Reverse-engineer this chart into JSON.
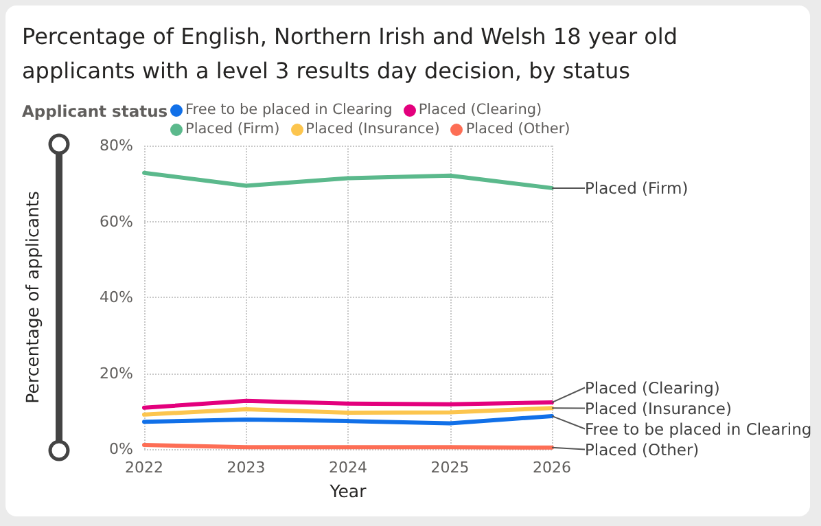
{
  "chart_data": {
    "type": "line",
    "title": "Percentage of English, Northern Irish and Welsh 18 year old applicants with a level 3 results day decision, by status",
    "xlabel": "Year",
    "ylabel": "Percentage of applicants",
    "legend_title": "Applicant status",
    "categories": [
      "2022",
      "2023",
      "2024",
      "2025",
      "2026"
    ],
    "series": [
      {
        "name": "Free to be placed in Clearing",
        "color": "#1170e8",
        "values": [
          7.2,
          7.8,
          7.4,
          6.8,
          8.7
        ]
      },
      {
        "name": "Placed (Clearing)",
        "color": "#e3007d",
        "values": [
          10.9,
          12.7,
          12.0,
          11.8,
          12.3
        ]
      },
      {
        "name": "Placed (Firm)",
        "color": "#5bb98c",
        "values": [
          72.8,
          69.4,
          71.4,
          72.1,
          68.8
        ]
      },
      {
        "name": "Placed (Insurance)",
        "color": "#fcc54e",
        "values": [
          9.1,
          10.5,
          9.6,
          9.7,
          10.8
        ]
      },
      {
        "name": "Placed (Other)",
        "color": "#fd6e55",
        "values": [
          1.1,
          0.5,
          0.5,
          0.5,
          0.4
        ]
      }
    ],
    "ylim": [
      0,
      80
    ],
    "yticks": [
      {
        "value": 0,
        "label": "0%"
      },
      {
        "value": 20,
        "label": "20%"
      },
      {
        "value": 40,
        "label": "40%"
      },
      {
        "value": 60,
        "label": "60%"
      },
      {
        "value": 80,
        "label": "80%"
      }
    ],
    "grid": true,
    "legend": "top",
    "marker": "none",
    "line_style": "solid"
  }
}
